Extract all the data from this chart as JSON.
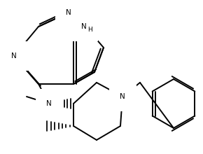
{
  "bg_color": "#ffffff",
  "line_color": "#000000",
  "line_width": 1.4,
  "font_size": 7.5,
  "xlim": [
    0,
    290
  ],
  "ylim": [
    0,
    220
  ]
}
